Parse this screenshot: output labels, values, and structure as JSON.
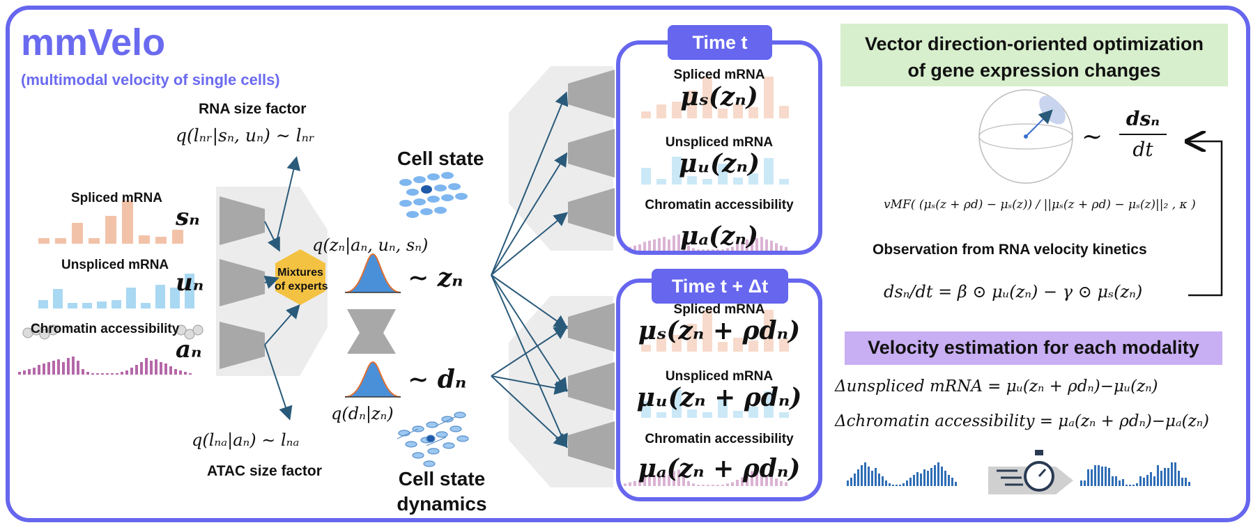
{
  "title": "mmVelo",
  "subtitle": "(multimodal velocity of single cells)",
  "input": {
    "spliced_label": "Spliced mRNA",
    "spliced_symbol": "sₙ",
    "unspliced_label": "Unspliced mRNA",
    "unspliced_symbol": "uₙ",
    "chromatin_label": "Chromatin accessibility",
    "chromatin_symbol": "aₙ"
  },
  "size_factors": {
    "rna_label": "RNA size factor",
    "rna_formula": "q(lₙᵣ|sₙ, uₙ) ∼ lₙᵣ",
    "atac_label": "ATAC size factor",
    "atac_formula": "q(lₙₐ|aₙ) ∼ lₙₐ"
  },
  "encoder": {
    "moe_label_line1": "Mixtures",
    "moe_label_line2": "of experts",
    "posterior": "q(zₙ|aₙ, uₙ, sₙ)",
    "z_sample": "∼ zₙ",
    "d_sample": "∼ dₙ",
    "d_posterior": "q(dₙ|zₙ)"
  },
  "cell_state": {
    "label": "Cell state",
    "dynamics_line1": "Cell state",
    "dynamics_line2": "dynamics"
  },
  "time_t": {
    "pill": "Time t",
    "spliced_label": "Spliced mRNA",
    "spliced_expr": "μₛ(zₙ)",
    "unspliced_label": "Unspliced mRNA",
    "unspliced_expr": "μᵤ(zₙ)",
    "chromatin_label": "Chromatin accessibility",
    "chromatin_expr": "μₐ(zₙ)"
  },
  "time_t_dt": {
    "pill": "Time t + Δt",
    "spliced_label": "Spliced mRNA",
    "spliced_expr": "μₛ(zₙ + ρdₙ)",
    "unspliced_label": "Unspliced mRNA",
    "unspliced_expr": "μᵤ(zₙ + ρdₙ)",
    "chromatin_label": "Chromatin accessibility",
    "chromatin_expr": "μₐ(zₙ + ρdₙ)"
  },
  "optimization": {
    "heading_line1": "Vector direction-oriented optimization",
    "heading_line2": "of gene expression changes",
    "tilde": "∼",
    "ds_num": "dsₙ",
    "ds_den": "dt",
    "vmf": "vMF( (μₛ(z + ρd) − μₛ(z)) / ||μₛ(z + ρd) − μₛ(z)||₂ , κ )",
    "observation_label": "Observation from RNA velocity kinetics",
    "kinetics": "dsₙ/dt = β ⊙ μᵤ(zₙ) − γ ⊙ μₛ(zₙ)"
  },
  "velocity": {
    "heading": "Velocity estimation for each modality",
    "unspliced_eq": "Δunspliced mRNA = μᵤ(zₙ + ρdₙ)−μᵤ(zₙ)",
    "chromatin_eq": "Δchromatin accessibility = μₐ(zₙ + ρdₙ)−μₐ(zₙ)"
  },
  "colors": {
    "accent": "#6666ee",
    "spliced": "#f2c2a8",
    "unspliced": "#a9d8f2",
    "chromatin": "#b567a8",
    "arrow": "#2a5a7a",
    "encoder_gray": "#a8a8a8",
    "hexagon": "#f4c242",
    "velocity_bars": "#2f6db5",
    "green_bg": "#d7efcc",
    "purple_bg": "#c8aef2"
  }
}
